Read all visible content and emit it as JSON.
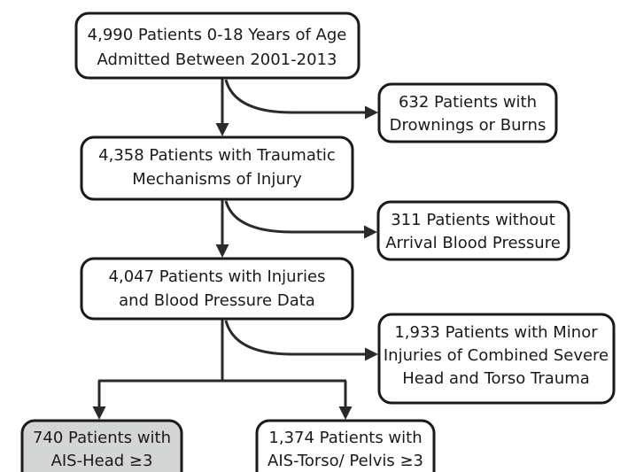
{
  "nodes": [
    {
      "lines": [
        "4,990 Patients 0-18 Years of Age",
        "Admitted Between 2001-2013"
      ]
    },
    {
      "lines": [
        "632 Patients with",
        "Drownings or Burns"
      ]
    },
    {
      "lines": [
        "4,358 Patients with Traumatic",
        "Mechanisms of Injury"
      ]
    },
    {
      "lines": [
        "311 Patients without",
        "Arrival Blood Pressure"
      ]
    },
    {
      "lines": [
        "4,047 Patients with Injuries",
        "and Blood Pressure Data"
      ]
    },
    {
      "lines": [
        "1,933 Patients with Minor",
        "Injuries of Combined Severe",
        "Head and Torso Trauma"
      ]
    },
    {
      "lines": [
        "740 Patients with",
        "AIS-Head ≥3"
      ]
    },
    {
      "lines": [
        "1,374 Patients with",
        "AIS-Torso/ Pelvis ≥3"
      ]
    }
  ]
}
